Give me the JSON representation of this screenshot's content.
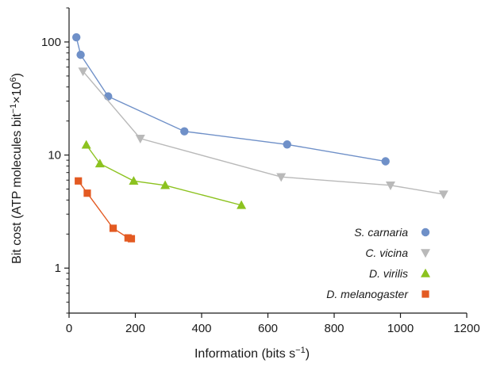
{
  "chart_data": {
    "type": "line",
    "xlabel": "Information (bits s",
    "xlabel_sup": "−1",
    "xlabel_end": ")",
    "ylabel": "Bit cost (ATP molecules bit",
    "ylabel_sup1": "−1",
    "ylabel_mid": "×10",
    "ylabel_sup2": "6",
    "ylabel_end": ")",
    "xlim": [
      0,
      1200
    ],
    "ylim": [
      0.4,
      200
    ],
    "y_scale": "log",
    "x_ticks": [
      {
        "value": 0,
        "label": "0"
      },
      {
        "value": 200,
        "label": "200"
      },
      {
        "value": 400,
        "label": "400"
      },
      {
        "value": 600,
        "label": "600"
      },
      {
        "value": 800,
        "label": "800"
      },
      {
        "value": 1000,
        "label": "1000"
      },
      {
        "value": 1200,
        "label": "1200"
      }
    ],
    "y_ticks": [
      {
        "value": 1,
        "label": "1"
      },
      {
        "value": 10,
        "label": "10"
      },
      {
        "value": 100,
        "label": "100"
      }
    ],
    "grid": false,
    "legend": "bottom-right",
    "series": [
      {
        "name": "S. carnaria",
        "color": "#6f90c8",
        "marker": "circle",
        "points": [
          [
            22,
            110
          ],
          [
            35,
            77
          ],
          [
            118,
            33
          ],
          [
            348,
            16.2
          ],
          [
            658,
            12.4
          ],
          [
            955,
            8.8
          ]
        ]
      },
      {
        "name": "C. vicina",
        "color": "#b9b9b9",
        "marker": "triangle-down",
        "points": [
          [
            42,
            55
          ],
          [
            215,
            14
          ],
          [
            640,
            6.4
          ],
          [
            970,
            5.4
          ],
          [
            1130,
            4.5
          ]
        ]
      },
      {
        "name": "D. virilis",
        "color": "#8cc21f",
        "marker": "triangle-up",
        "points": [
          [
            52,
            12.3
          ],
          [
            93,
            8.4
          ],
          [
            195,
            5.9
          ],
          [
            290,
            5.4
          ],
          [
            520,
            3.6
          ]
        ]
      },
      {
        "name": "D. melanogaster",
        "color": "#e35a22",
        "marker": "square",
        "points": [
          [
            28,
            5.9
          ],
          [
            55,
            4.6
          ],
          [
            133,
            2.25
          ],
          [
            178,
            1.85
          ],
          [
            188,
            1.82
          ]
        ]
      }
    ]
  }
}
